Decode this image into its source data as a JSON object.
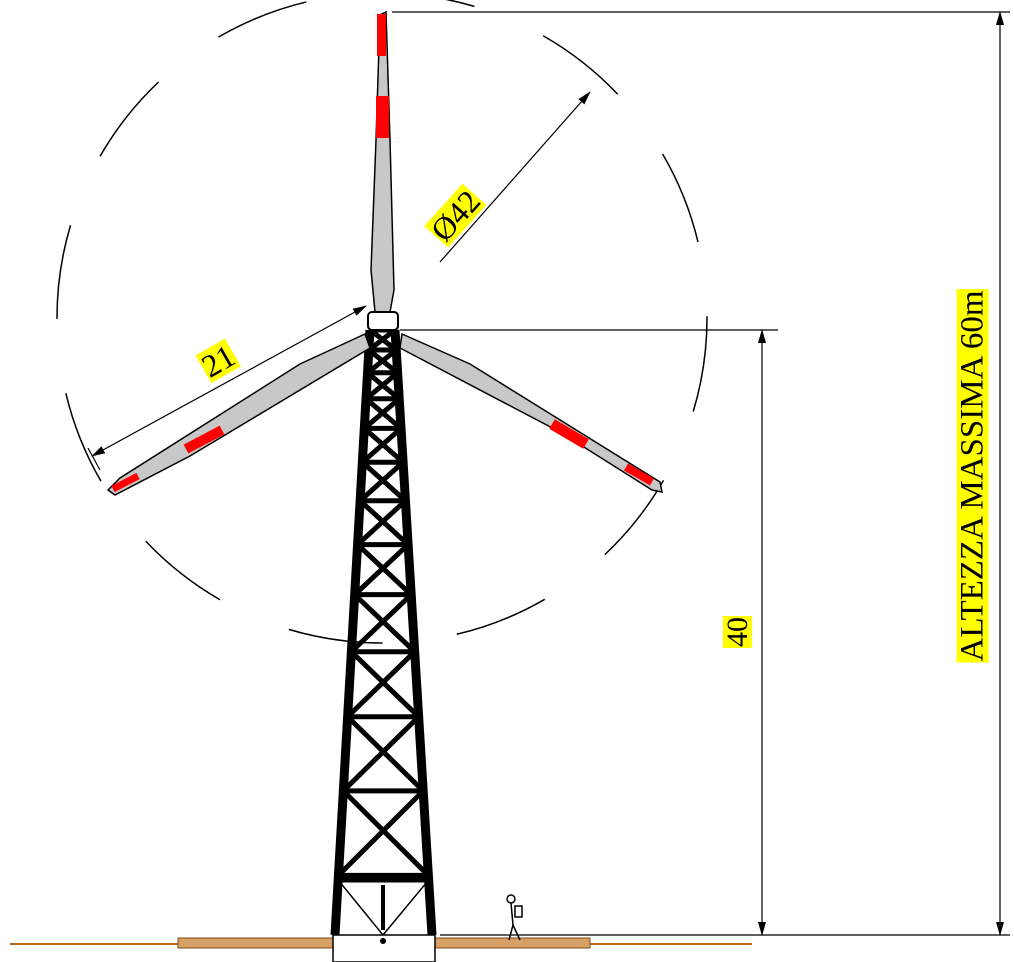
{
  "labels": {
    "diameter": "Ø42",
    "blade_length": "21",
    "hub_height": "40",
    "max_height": "ALTEZZA MASSIMA 60m"
  }
}
